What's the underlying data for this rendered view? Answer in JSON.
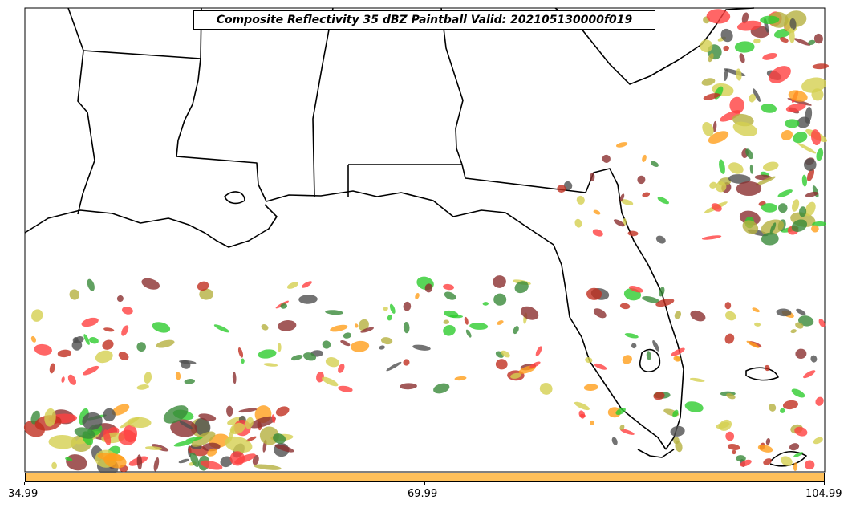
{
  "title": "Composite Reflectivity 35 dBZ Paintball Valid: 202105130000f019",
  "colorbar": {
    "color": "#ffc05a",
    "ticks": [
      "34.99",
      "69.99",
      "104.99"
    ]
  },
  "map": {
    "region": "Gulf of Mexico / Southeastern United States",
    "background": "#ffffff",
    "paint_colors": [
      "#ff4040",
      "#ff9f1c",
      "#2ecc2e",
      "#8b3030",
      "#505050",
      "#3a8a3a",
      "#b5b040",
      "#d4d050",
      "#c03020"
    ]
  }
}
